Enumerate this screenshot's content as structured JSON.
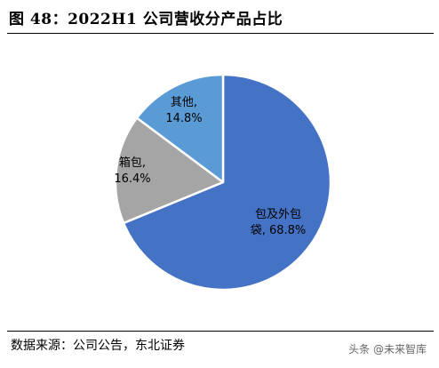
{
  "header": {
    "title": "图 48：2022H1 公司营收分产品占比"
  },
  "footer": {
    "source": "数据来源：公司公告，东北证券",
    "watermark": "头条 @未来智库"
  },
  "chart_data": {
    "type": "pie",
    "title": "",
    "slices": [
      {
        "label_line1": "包及外包",
        "label_line2": "袋, 68.8%",
        "name": "包及外包袋",
        "value": 68.8,
        "color": "#4472C4"
      },
      {
        "label_line1": "箱包,",
        "label_line2": "16.4%",
        "name": "箱包",
        "value": 16.4,
        "color": "#A5A5A5"
      },
      {
        "label_line1": "其他,",
        "label_line2": "14.8%",
        "name": "其他",
        "value": 14.8,
        "color": "#5B9BD5"
      }
    ],
    "legend": "none"
  }
}
